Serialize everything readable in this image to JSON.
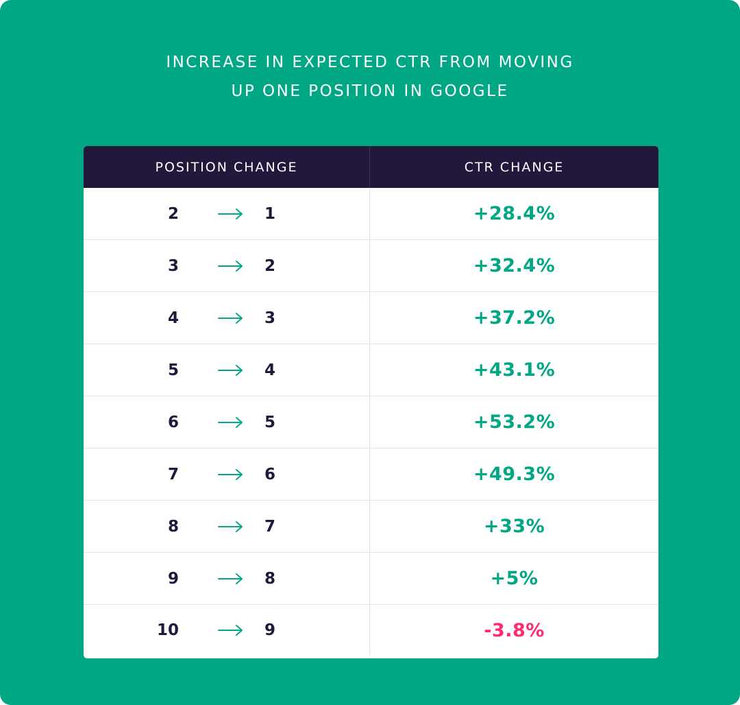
{
  "title_lines": [
    "INCREASE IN EXPECTED CTR FROM MOVING",
    "UP ONE POSITION IN GOOGLE"
  ],
  "colors": {
    "background": "#00a784",
    "header": "#22183c",
    "positive": "#00a784",
    "negative": "#ff2d6f",
    "text_dark": "#22183c"
  },
  "chart_data": {
    "type": "table",
    "title": "INCREASE IN EXPECTED CTR FROM MOVING UP ONE POSITION IN GOOGLE",
    "columns": [
      "POSITION CHANGE",
      "CTR CHANGE"
    ],
    "rows": [
      {
        "from": "2",
        "to": "1",
        "ctr": "+28.4%",
        "ctr_value": 28.4
      },
      {
        "from": "3",
        "to": "2",
        "ctr": "+32.4%",
        "ctr_value": 32.4
      },
      {
        "from": "4",
        "to": "3",
        "ctr": "+37.2%",
        "ctr_value": 37.2
      },
      {
        "from": "5",
        "to": "4",
        "ctr": "+43.1%",
        "ctr_value": 43.1
      },
      {
        "from": "6",
        "to": "5",
        "ctr": "+53.2%",
        "ctr_value": 53.2
      },
      {
        "from": "7",
        "to": "6",
        "ctr": "+49.3%",
        "ctr_value": 49.3
      },
      {
        "from": "8",
        "to": "7",
        "ctr": "+33%",
        "ctr_value": 33
      },
      {
        "from": "9",
        "to": "8",
        "ctr": "+5%",
        "ctr_value": 5
      },
      {
        "from": "10",
        "to": "9",
        "ctr": "-3.8%",
        "ctr_value": -3.8
      }
    ]
  }
}
